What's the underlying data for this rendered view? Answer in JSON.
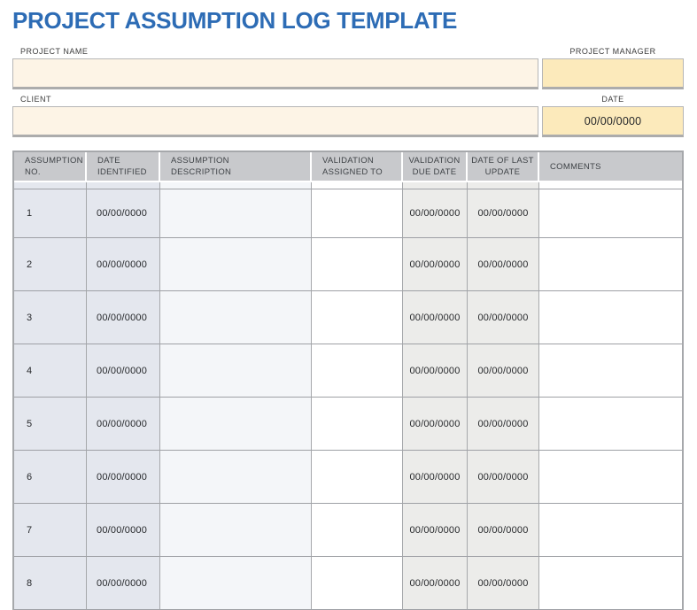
{
  "title": "PROJECT ASSUMPTION LOG TEMPLATE",
  "form": {
    "project_name": {
      "label": "PROJECT NAME",
      "value": ""
    },
    "project_manager": {
      "label": "PROJECT MANAGER",
      "value": ""
    },
    "client": {
      "label": "CLIENT",
      "value": ""
    },
    "date": {
      "label": "DATE",
      "value": "00/00/0000"
    }
  },
  "table": {
    "columns": [
      {
        "key": "no",
        "label": "ASSUMPTION\nNO."
      },
      {
        "key": "date_identified",
        "label": "DATE\nIDENTIFIED"
      },
      {
        "key": "description",
        "label": "ASSUMPTION\nDESCRIPTION"
      },
      {
        "key": "assigned_to",
        "label": "VALIDATION\nASSIGNED TO"
      },
      {
        "key": "due_date",
        "label": "VALIDATION\nDUE DATE"
      },
      {
        "key": "last_update",
        "label": "DATE OF LAST\nUPDATE"
      },
      {
        "key": "comments",
        "label": "COMMENTS"
      }
    ],
    "rows": [
      {
        "no": "1",
        "date_identified": "00/00/0000",
        "description": "",
        "assigned_to": "",
        "due_date": "00/00/0000",
        "last_update": "00/00/0000",
        "comments": ""
      },
      {
        "no": "2",
        "date_identified": "00/00/0000",
        "description": "",
        "assigned_to": "",
        "due_date": "00/00/0000",
        "last_update": "00/00/0000",
        "comments": ""
      },
      {
        "no": "3",
        "date_identified": "00/00/0000",
        "description": "",
        "assigned_to": "",
        "due_date": "00/00/0000",
        "last_update": "00/00/0000",
        "comments": ""
      },
      {
        "no": "4",
        "date_identified": "00/00/0000",
        "description": "",
        "assigned_to": "",
        "due_date": "00/00/0000",
        "last_update": "00/00/0000",
        "comments": ""
      },
      {
        "no": "5",
        "date_identified": "00/00/0000",
        "description": "",
        "assigned_to": "",
        "due_date": "00/00/0000",
        "last_update": "00/00/0000",
        "comments": ""
      },
      {
        "no": "6",
        "date_identified": "00/00/0000",
        "description": "",
        "assigned_to": "",
        "due_date": "00/00/0000",
        "last_update": "00/00/0000",
        "comments": ""
      },
      {
        "no": "7",
        "date_identified": "00/00/0000",
        "description": "",
        "assigned_to": "",
        "due_date": "00/00/0000",
        "last_update": "00/00/0000",
        "comments": ""
      },
      {
        "no": "8",
        "date_identified": "00/00/0000",
        "description": "",
        "assigned_to": "",
        "due_date": "00/00/0000",
        "last_update": "00/00/0000",
        "comments": ""
      }
    ],
    "column_backgrounds": {
      "no": "bg-blue",
      "date_identified": "bg-blue",
      "description": "bg-blue-light",
      "assigned_to": "bg-white",
      "due_date": "bg-gray",
      "last_update": "bg-gray",
      "comments": "bg-white"
    }
  },
  "colors": {
    "accent_blue": "#2D6CB5",
    "field_cream": "#FDF4E6",
    "field_yellow": "#FCEABB",
    "header_bg": "#C8C9CC",
    "col_blue": "#E4E7EE",
    "col_blue_light": "#F4F6F9",
    "col_gray": "#ECECEA",
    "border_gray": "#A6A8AB",
    "row_line": "#9EA0A5"
  }
}
